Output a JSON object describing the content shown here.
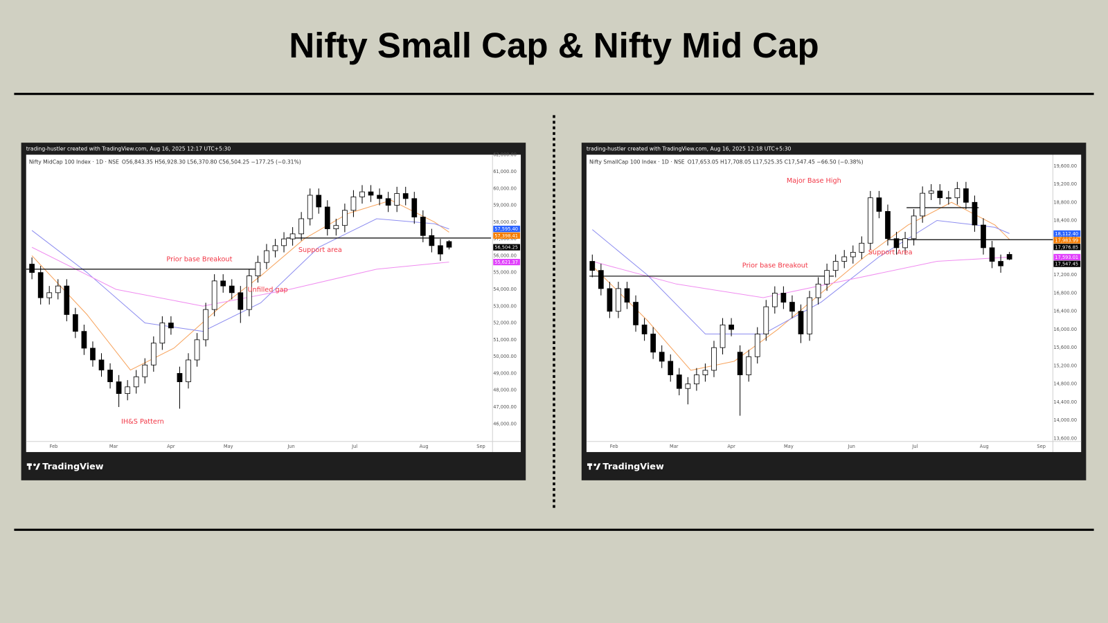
{
  "title": "Nifty Small Cap & Nifty Mid Cap",
  "chart_data": [
    {
      "type": "candlestick",
      "attribution": "trading-hustler created with TradingView.com, Aug 16, 2025 12:17 UTC+5:30",
      "legend": "Nifty MidCap 100 Index · 1D · NSE",
      "ohlc": "O56,843.35  H56,928.30  L56,370.80  C56,504.25  −177.25 (−0.31%)",
      "brand": "TradingView",
      "xlim": [
        -1,
        160
      ],
      "xticks": [
        {
          "value": 8.5,
          "label": "Feb"
        },
        {
          "value": 29.2,
          "label": "Mar"
        },
        {
          "value": 49,
          "label": "Apr"
        },
        {
          "value": 68.8,
          "label": "May"
        },
        {
          "value": 90.5,
          "label": "Jun"
        },
        {
          "value": 112.4,
          "label": "Jul"
        },
        {
          "value": 136.3,
          "label": "Aug"
        },
        {
          "value": 156,
          "label": "Sep"
        }
      ],
      "ylim": [
        44950,
        62010
      ],
      "yticks": [
        {
          "value": 46000,
          "label": "46,000.00"
        },
        {
          "value": 47000,
          "label": "47,000.00"
        },
        {
          "value": 48000,
          "label": "48,000.00"
        },
        {
          "value": 49000,
          "label": "49,000.00"
        },
        {
          "value": 50000,
          "label": "50,000.00"
        },
        {
          "value": 51000,
          "label": "51,000.00"
        },
        {
          "value": 52000,
          "label": "52,000.00"
        },
        {
          "value": 53000,
          "label": "53,000.00"
        },
        {
          "value": 54000,
          "label": "54,000.00"
        },
        {
          "value": 55000,
          "label": "55,000.00"
        },
        {
          "value": 56000,
          "label": "56,000.00"
        },
        {
          "value": 57000,
          "label": "57,000.00"
        },
        {
          "value": 58000,
          "label": "58,000.00"
        },
        {
          "value": 59000,
          "label": "59,000.00"
        },
        {
          "value": 60000,
          "label": "60,000.00"
        },
        {
          "value": 61000,
          "label": "61,000.00"
        },
        {
          "value": 62000,
          "label": "62,000.00"
        }
      ],
      "grid": false,
      "up_color": "#ffffff",
      "down_color": "#000000",
      "wick_color": "#000000",
      "x": [
        1,
        4,
        7,
        10,
        13,
        16,
        19,
        22,
        25,
        28,
        31,
        34,
        37,
        40,
        43,
        46,
        49,
        52,
        55,
        58,
        61,
        64,
        67,
        70,
        73,
        76,
        79,
        82,
        85,
        88,
        91,
        94,
        97,
        100,
        103,
        106,
        109,
        112,
        115,
        118,
        121,
        124,
        127,
        130,
        133,
        136,
        139,
        142,
        145
      ],
      "open": [
        55500,
        55000,
        53500,
        53800,
        54200,
        52500,
        51500,
        50500,
        49800,
        49200,
        48500,
        47800,
        48200,
        48800,
        49500,
        50800,
        52000,
        49000,
        48500,
        49800,
        51000,
        52800,
        54500,
        54200,
        53800,
        52800,
        54800,
        55600,
        56300,
        56600,
        57000,
        57300,
        58200,
        59600,
        58900,
        57600,
        57800,
        58700,
        59500,
        59800,
        59600,
        59400,
        59000,
        59700,
        59400,
        58300,
        57200,
        56600,
        56843.35
      ],
      "high": [
        55900,
        55400,
        54200,
        54600,
        54600,
        52900,
        51900,
        50900,
        50200,
        49600,
        48900,
        48600,
        49200,
        49900,
        51200,
        52400,
        52400,
        49400,
        50200,
        51400,
        53200,
        54900,
        54900,
        54600,
        54200,
        55200,
        56000,
        56700,
        57000,
        57400,
        57700,
        58600,
        60000,
        60000,
        59300,
        58200,
        59100,
        59900,
        60200,
        60200,
        60000,
        59800,
        60100,
        60100,
        59800,
        58700,
        57600,
        57000,
        56928.3
      ],
      "low": [
        54600,
        53100,
        53100,
        53400,
        52100,
        51100,
        50100,
        49400,
        48800,
        48100,
        47000,
        47400,
        47800,
        48400,
        49100,
        50400,
        51300,
        46900,
        48100,
        49400,
        50600,
        52400,
        53800,
        53400,
        52000,
        52400,
        54400,
        55200,
        55900,
        56200,
        56600,
        56900,
        57800,
        58500,
        57200,
        57200,
        57400,
        58300,
        59100,
        59200,
        59000,
        58600,
        58600,
        59000,
        57900,
        56800,
        56200,
        55700,
        56370.8
      ],
      "close": [
        55000,
        53500,
        53800,
        54200,
        52500,
        51500,
        50500,
        49800,
        49200,
        48500,
        47800,
        48200,
        48800,
        49500,
        50800,
        52000,
        51700,
        48500,
        49800,
        51000,
        52800,
        54500,
        54200,
        53800,
        52800,
        54800,
        55600,
        56300,
        56600,
        57000,
        57300,
        58200,
        59600,
        58900,
        57600,
        57800,
        58700,
        59500,
        59800,
        59600,
        59400,
        59000,
        59700,
        59400,
        58300,
        57200,
        56600,
        56100,
        56504.25
      ],
      "series": [
        {
          "color": "#f7a35c",
          "x": [
            1,
            20,
            35,
            50,
            65,
            80,
            95,
            110,
            125,
            140,
            145
          ],
          "values": [
            56000,
            52500,
            49200,
            50500,
            52800,
            54800,
            57000,
            58500,
            59300,
            58000,
            57398.41
          ]
        },
        {
          "color": "#8c8cf0",
          "x": [
            1,
            20,
            40,
            60,
            80,
            100,
            120,
            140,
            145
          ],
          "values": [
            57500,
            55000,
            52000,
            51500,
            53200,
            56500,
            58200,
            57900,
            57595.4
          ]
        },
        {
          "color": "#f08cf0",
          "x": [
            1,
            30,
            60,
            90,
            120,
            145
          ],
          "values": [
            56500,
            54000,
            53000,
            54000,
            55200,
            55621.37
          ]
        }
      ],
      "levels": [
        {
          "value": 55200,
          "x": [
            -1,
            80
          ]
        },
        {
          "value": 57050,
          "x": [
            88.8,
            159.5
          ]
        }
      ],
      "annotation_color": "#f23645",
      "annotations": [
        {
          "text": "Prior base Breakout",
          "x": 58.8,
          "y": 55790
        },
        {
          "text": "Support area",
          "x": 100.5,
          "y": 56340
        },
        {
          "text": "Unfilled gap",
          "x": 82.4,
          "y": 53980
        },
        {
          "text": "IH&S Pattern",
          "x": 39.2,
          "y": 46130
        }
      ],
      "price_labels": [
        {
          "value": 57595.4,
          "label": "57,595.40",
          "color": "#2962ff"
        },
        {
          "value": 57398.41,
          "label": "57,398.41",
          "color": "#f57c00"
        },
        {
          "value": 56504.25,
          "label": "56,504.25",
          "color": "#000000"
        },
        {
          "value": 55621.37,
          "label": "55,621.37",
          "color": "#e040fb"
        }
      ]
    },
    {
      "type": "candlestick",
      "attribution": "trading-hustler created with TradingView.com, Aug 16, 2025 12:18 UTC+5:30",
      "legend": "Nifty SmallCap 100 Index · 1D · NSE",
      "ohlc": "O17,653.05  H17,708.05  L17,525.35  C17,547.45  −66.50 (−0.38%)",
      "brand": "TradingView",
      "xlim": [
        -1,
        160
      ],
      "xticks": [
        {
          "value": 8.5,
          "label": "Feb"
        },
        {
          "value": 29.2,
          "label": "Mar"
        },
        {
          "value": 49,
          "label": "Apr"
        },
        {
          "value": 68.8,
          "label": "May"
        },
        {
          "value": 90.5,
          "label": "Jun"
        },
        {
          "value": 112.4,
          "label": "Jul"
        },
        {
          "value": 136.3,
          "label": "Aug"
        },
        {
          "value": 156,
          "label": "Sep"
        }
      ],
      "ylim": [
        13533,
        19849
      ],
      "yticks": [
        {
          "value": 13600,
          "label": "13,600.00"
        },
        {
          "value": 14000,
          "label": "14,000.00"
        },
        {
          "value": 14400,
          "label": "14,400.00"
        },
        {
          "value": 14800,
          "label": "14,800.00"
        },
        {
          "value": 15200,
          "label": "15,200.00"
        },
        {
          "value": 15600,
          "label": "15,600.00"
        },
        {
          "value": 16000,
          "label": "16,000.00"
        },
        {
          "value": 16400,
          "label": "16,400.00"
        },
        {
          "value": 16800,
          "label": "16,800.00"
        },
        {
          "value": 17200,
          "label": "17,200.00"
        },
        {
          "value": 17600,
          "label": "17,600.00"
        },
        {
          "value": 18000,
          "label": "18,000.00"
        },
        {
          "value": 18400,
          "label": "18,400.00"
        },
        {
          "value": 18800,
          "label": "18,800.00"
        },
        {
          "value": 19200,
          "label": "19,200.00"
        },
        {
          "value": 19600,
          "label": "19,600.00"
        }
      ],
      "grid": false,
      "up_color": "#ffffff",
      "down_color": "#000000",
      "wick_color": "#000000",
      "x": [
        1,
        4,
        7,
        10,
        13,
        16,
        19,
        22,
        25,
        28,
        31,
        34,
        37,
        40,
        43,
        46,
        49,
        52,
        55,
        58,
        61,
        64,
        67,
        70,
        73,
        76,
        79,
        82,
        85,
        88,
        91,
        94,
        97,
        100,
        103,
        106,
        109,
        112,
        115,
        118,
        121,
        124,
        127,
        130,
        133,
        136,
        139,
        142,
        145
      ],
      "open": [
        17500,
        17300,
        16900,
        16400,
        16900,
        16600,
        16100,
        15900,
        15500,
        15300,
        15000,
        14700,
        14800,
        15000,
        15100,
        15600,
        16100,
        15500,
        15000,
        15400,
        15900,
        16500,
        16800,
        16600,
        16400,
        15900,
        16700,
        17000,
        17300,
        17500,
        17600,
        17700,
        17900,
        18900,
        18600,
        18000,
        17800,
        18000,
        18500,
        19000,
        19050,
        18900,
        18900,
        19100,
        18800,
        18300,
        17800,
        17500,
        17653.05
      ],
      "high": [
        17650,
        17450,
        17050,
        17050,
        17050,
        16750,
        16250,
        16050,
        15650,
        15450,
        15150,
        14950,
        15150,
        15250,
        15750,
        16250,
        16250,
        15650,
        15550,
        16050,
        16650,
        16950,
        16950,
        16750,
        16550,
        16850,
        17150,
        17450,
        17650,
        17750,
        17850,
        18050,
        19050,
        19050,
        18750,
        18150,
        18150,
        18650,
        19150,
        19200,
        19200,
        19050,
        19250,
        19250,
        18950,
        18450,
        17950,
        17650,
        17708.05
      ],
      "low": [
        17150,
        16750,
        16250,
        16250,
        16450,
        15950,
        15750,
        15350,
        15150,
        14850,
        14550,
        14350,
        14650,
        14850,
        14950,
        15450,
        15850,
        14100,
        14850,
        15250,
        15750,
        16350,
        16450,
        16250,
        15700,
        15750,
        16550,
        16850,
        17150,
        17350,
        17450,
        17550,
        17750,
        18450,
        17850,
        17650,
        17650,
        17850,
        18350,
        18850,
        18750,
        18750,
        18750,
        18650,
        18150,
        17650,
        17350,
        17250,
        17525.35
      ],
      "close": [
        17300,
        16900,
        16400,
        16900,
        16600,
        16100,
        15900,
        15500,
        15300,
        15000,
        14700,
        14800,
        15000,
        15100,
        15600,
        16100,
        16000,
        15000,
        15400,
        15900,
        16500,
        16800,
        16600,
        16400,
        15900,
        16700,
        17000,
        17300,
        17500,
        17600,
        17700,
        17900,
        18900,
        18600,
        18000,
        17800,
        18000,
        18500,
        19000,
        19050,
        18900,
        18900,
        19100,
        18800,
        18300,
        17800,
        17500,
        17400,
        17547.45
      ],
      "series": [
        {
          "color": "#f7a35c",
          "x": [
            1,
            20,
            35,
            50,
            65,
            80,
            95,
            110,
            125,
            140,
            145
          ],
          "values": [
            17400,
            16200,
            15100,
            15300,
            16000,
            16800,
            17600,
            18300,
            18800,
            18300,
            17983.99
          ]
        },
        {
          "color": "#8c8cf0",
          "x": [
            1,
            20,
            40,
            60,
            80,
            100,
            120,
            140,
            145
          ],
          "values": [
            18200,
            17200,
            15900,
            15900,
            16600,
            17600,
            18400,
            18250,
            18112.4
          ]
        },
        {
          "color": "#f08cf0",
          "x": [
            1,
            30,
            60,
            90,
            120,
            145
          ],
          "values": [
            17500,
            17000,
            16700,
            17100,
            17500,
            17593.01
          ]
        }
      ],
      "levels": [
        {
          "value": 17174,
          "x": [
            0,
            84.4
          ]
        },
        {
          "value": 18682,
          "x": [
            109.5,
            134.4
          ]
        },
        {
          "value": 17976.85,
          "x": [
            103,
            160
          ]
        }
      ],
      "annotation_color": "#f23645",
      "annotations": [
        {
          "text": "Major Base High",
          "x": 77.5,
          "y": 19274
        },
        {
          "text": "Support Area",
          "x": 103.9,
          "y": 17700
        },
        {
          "text": "Prior base Breakout",
          "x": 64.1,
          "y": 17407
        }
      ],
      "price_labels": [
        {
          "value": 18112.4,
          "label": "18,112.40",
          "color": "#2962ff"
        },
        {
          "value": 17983.99,
          "label": "17,983.99",
          "color": "#f57c00"
        },
        {
          "value": 17976.85,
          "label": "17,976.85",
          "color": "#000000"
        },
        {
          "value": 17593.01,
          "label": "17,593.01",
          "color": "#e040fb"
        },
        {
          "value": 17547.45,
          "label": "17,547.45",
          "color": "#000000"
        }
      ]
    }
  ]
}
